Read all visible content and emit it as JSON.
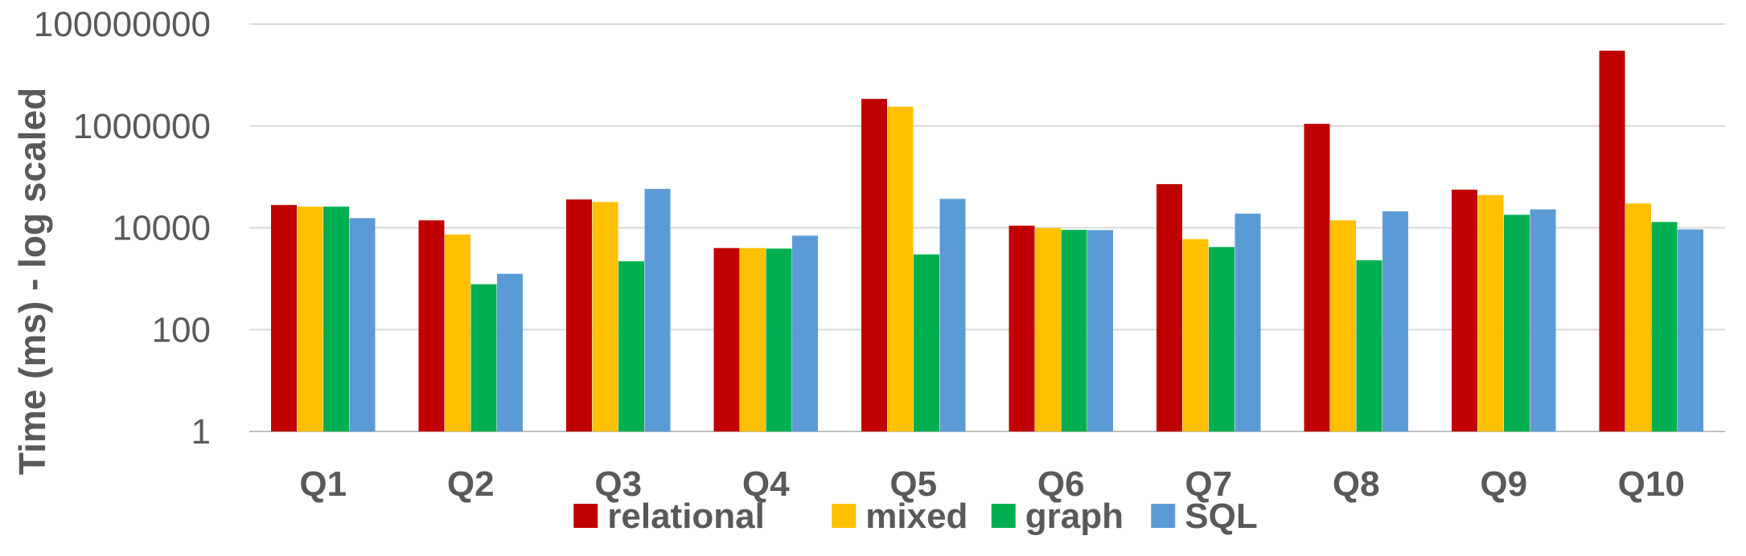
{
  "chart_data": {
    "type": "bar",
    "title": "",
    "xlabel": "",
    "ylabel": "Time (ms) - log scaled",
    "yscale": "log",
    "ylim": [
      1,
      100000000
    ],
    "yticks": [
      "1",
      "100",
      "10000",
      "1000000",
      "100000000"
    ],
    "grid": true,
    "legend_position": "bottom",
    "categories": [
      "Q1",
      "Q2",
      "Q3",
      "Q4",
      "Q5",
      "Q6",
      "Q7",
      "Q8",
      "Q9",
      "Q10"
    ],
    "series": [
      {
        "name": "relational",
        "color": "#C00000",
        "values": [
          28000,
          14000,
          36000,
          4000,
          3400000,
          11000,
          72000,
          1100000,
          56000,
          30000000
        ]
      },
      {
        "name": "mixed",
        "color": "#FFC000",
        "values": [
          26000,
          7400,
          32000,
          4000,
          2400000,
          9900,
          6000,
          14000,
          44000,
          30000
        ]
      },
      {
        "name": "graph",
        "color": "#00B050",
        "values": [
          26000,
          780,
          2200,
          3900,
          3000,
          9100,
          4200,
          2300,
          18000,
          13000
        ]
      },
      {
        "name": "SQL",
        "color": "#5B9BD5",
        "values": [
          15500,
          1250,
          58000,
          7000,
          37000,
          9000,
          19000,
          21000,
          23000,
          9300
        ]
      }
    ]
  }
}
